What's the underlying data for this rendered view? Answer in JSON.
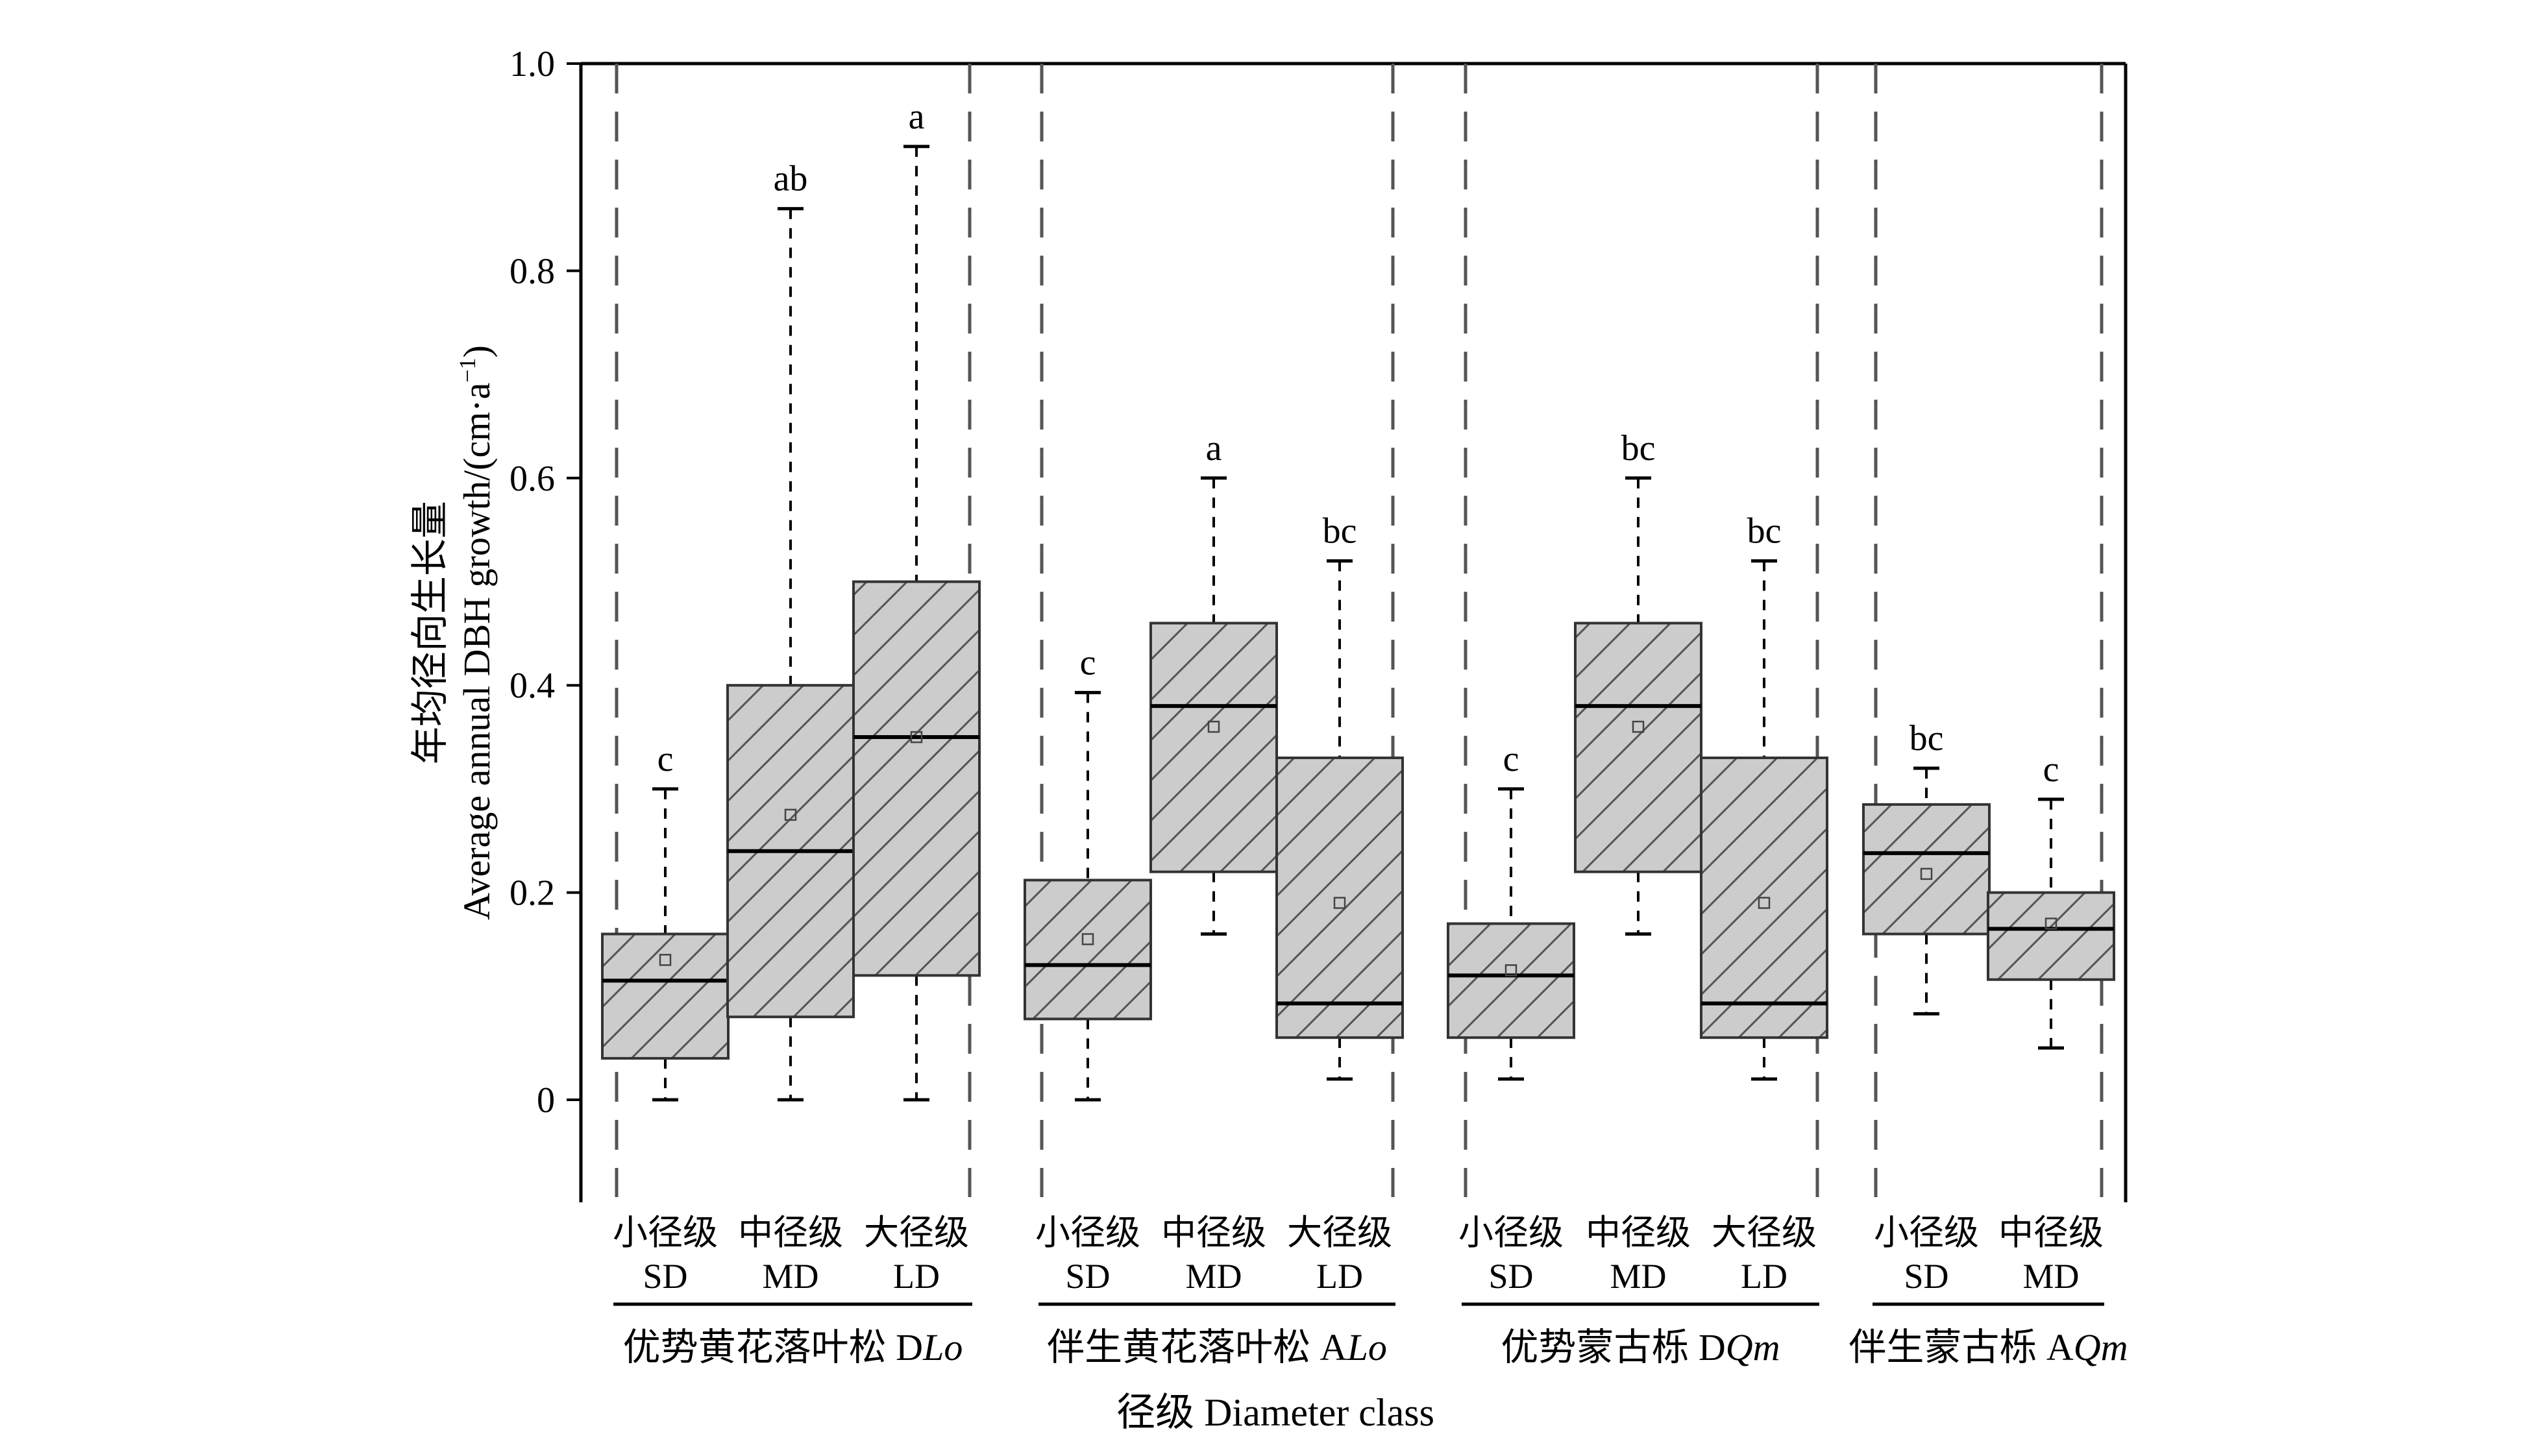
{
  "chart_data": {
    "type": "box",
    "ylabel_cn": "年均径向生长量",
    "ylabel_en": "Average annual DBH growth/(cm·a",
    "ylabel_sup": "−1",
    "ylabel_close": ")",
    "xlabel": "径级 Diameter class",
    "ylim": [
      -0.1,
      1.0
    ],
    "yticks": [
      {
        "value": 0,
        "label": "0"
      },
      {
        "value": 0.2,
        "label": "0.2"
      },
      {
        "value": 0.4,
        "label": "0.4"
      },
      {
        "value": 0.6,
        "label": "0.6"
      },
      {
        "value": 0.8,
        "label": "0.8"
      },
      {
        "value": 1.0,
        "label": "1.0"
      }
    ],
    "boxes": [
      {
        "group": 0,
        "cn": "小径级",
        "en": "SD",
        "min": 0.0,
        "q1": 0.04,
        "median": 0.115,
        "q3": 0.16,
        "max": 0.3,
        "mean": 0.135,
        "letter": "c"
      },
      {
        "group": 0,
        "cn": "中径级",
        "en": "MD",
        "min": 0.0,
        "q1": 0.08,
        "median": 0.24,
        "q3": 0.4,
        "max": 0.86,
        "mean": 0.275,
        "letter": "ab"
      },
      {
        "group": 0,
        "cn": "大径级",
        "en": "LD",
        "min": 0.0,
        "q1": 0.12,
        "median": 0.35,
        "q3": 0.5,
        "max": 0.92,
        "mean": 0.35,
        "letter": "a"
      },
      {
        "group": 1,
        "cn": "小径级",
        "en": "SD",
        "min": 0.0,
        "q1": 0.078,
        "median": 0.13,
        "q3": 0.212,
        "max": 0.393,
        "mean": 0.155,
        "letter": "c"
      },
      {
        "group": 1,
        "cn": "中径级",
        "en": "MD",
        "min": 0.16,
        "q1": 0.22,
        "median": 0.38,
        "q3": 0.46,
        "max": 0.6,
        "mean": 0.36,
        "letter": "a"
      },
      {
        "group": 1,
        "cn": "大径级",
        "en": "LD",
        "min": 0.02,
        "q1": 0.06,
        "median": 0.093,
        "q3": 0.33,
        "max": 0.52,
        "mean": 0.19,
        "letter": "bc"
      },
      {
        "group": 2,
        "cn": "小径级",
        "en": "SD",
        "min": 0.02,
        "q1": 0.06,
        "median": 0.12,
        "q3": 0.17,
        "max": 0.3,
        "mean": 0.125,
        "letter": "c"
      },
      {
        "group": 2,
        "cn": "中径级",
        "en": "MD",
        "min": 0.16,
        "q1": 0.22,
        "median": 0.38,
        "q3": 0.46,
        "max": 0.6,
        "mean": 0.36,
        "letter": "bc"
      },
      {
        "group": 2,
        "cn": "大径级",
        "en": "LD",
        "min": 0.02,
        "q1": 0.06,
        "median": 0.093,
        "q3": 0.33,
        "max": 0.52,
        "mean": 0.19,
        "letter": "bc"
      },
      {
        "group": 3,
        "cn": "小径级",
        "en": "SD",
        "min": 0.083,
        "q1": 0.16,
        "median": 0.238,
        "q3": 0.285,
        "max": 0.32,
        "mean": 0.218,
        "letter": "bc"
      },
      {
        "group": 3,
        "cn": "中径级",
        "en": "MD",
        "min": 0.05,
        "q1": 0.116,
        "median": 0.165,
        "q3": 0.2,
        "max": 0.29,
        "mean": 0.17,
        "letter": "c"
      }
    ],
    "groups": [
      {
        "label_cn": "优势黄花落叶松 D",
        "label_it": "Lo"
      },
      {
        "label_cn": "伴生黄花落叶松 A",
        "label_it": "Lo"
      },
      {
        "label_cn": "优势蒙古栎 D",
        "label_it": "Qm"
      },
      {
        "label_cn": "伴生蒙古栎 A",
        "label_it": "Qm"
      }
    ],
    "colors": {
      "box_fill": "#cccccc",
      "box_stroke": "#333333",
      "dashed_separator": "#555555",
      "axis": "#000000"
    }
  }
}
